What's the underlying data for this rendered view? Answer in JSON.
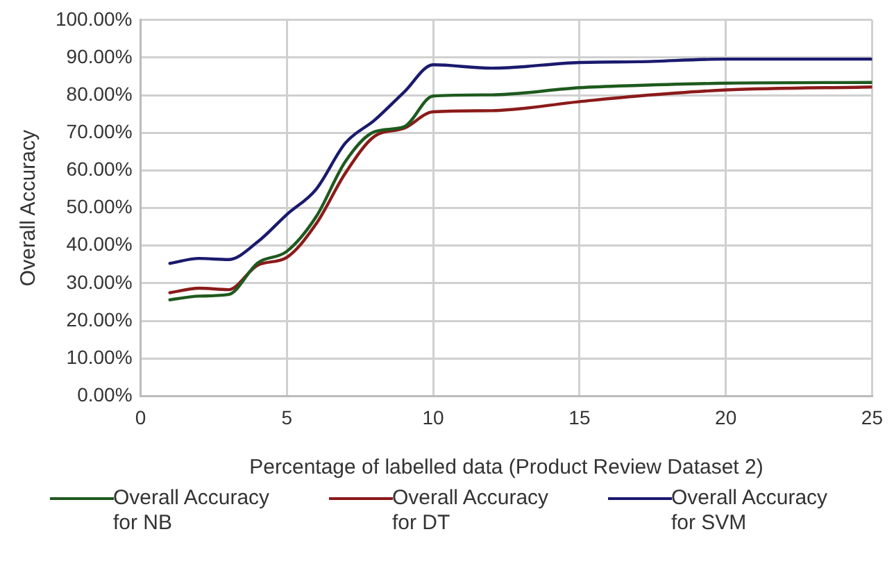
{
  "chart_data": {
    "type": "line",
    "xlabel": "Percentage of labelled data (Product Review Dataset 2)",
    "ylabel": "Overall Accuracy",
    "x": [
      1,
      2,
      3,
      4,
      5,
      6,
      7,
      8,
      9,
      10,
      12,
      15,
      17,
      20,
      25
    ],
    "series": [
      {
        "name": "Overall Accuracy for NB",
        "color": "#1e5a1e",
        "values": [
          25.6,
          26.6,
          27.0,
          35.4,
          38.5,
          47.7,
          62.4,
          70.3,
          71.6,
          79.8,
          80.1,
          82.0,
          82.6,
          83.2,
          83.4
        ]
      },
      {
        "name": "Overall Accuracy for DT",
        "color": "#8b1a1a",
        "values": [
          27.5,
          28.7,
          28.3,
          34.8,
          36.9,
          45.8,
          59.3,
          69.1,
          71.2,
          75.6,
          75.9,
          78.3,
          79.8,
          81.4,
          82.2
        ]
      },
      {
        "name": "Overall Accuracy for SVM",
        "color": "#1a1a6e",
        "values": [
          35.3,
          36.6,
          36.3,
          41.0,
          48.3,
          55.0,
          67.3,
          73.4,
          80.8,
          88.1,
          87.2,
          88.7,
          88.9,
          89.6,
          89.6
        ]
      }
    ],
    "xlim": [
      0,
      25
    ],
    "xticks": [
      0,
      5,
      10,
      15,
      20,
      25
    ],
    "ylim": [
      0,
      100
    ],
    "yticks": [
      {
        "value": 0,
        "label": "0.00%"
      },
      {
        "value": 10,
        "label": "10.00%"
      },
      {
        "value": 20,
        "label": "20.00%"
      },
      {
        "value": 30,
        "label": "30.00%"
      },
      {
        "value": 40,
        "label": "40.00%"
      },
      {
        "value": 50,
        "label": "50.00%"
      },
      {
        "value": 60,
        "label": "60.00%"
      },
      {
        "value": 70,
        "label": "70.00%"
      },
      {
        "value": 80,
        "label": "80.00%"
      },
      {
        "value": 90,
        "label": "90.00%"
      },
      {
        "value": 100,
        "label": "100.00%"
      }
    ],
    "grid": true,
    "legend": "bottom",
    "marker": "none",
    "line_style": "solid"
  }
}
